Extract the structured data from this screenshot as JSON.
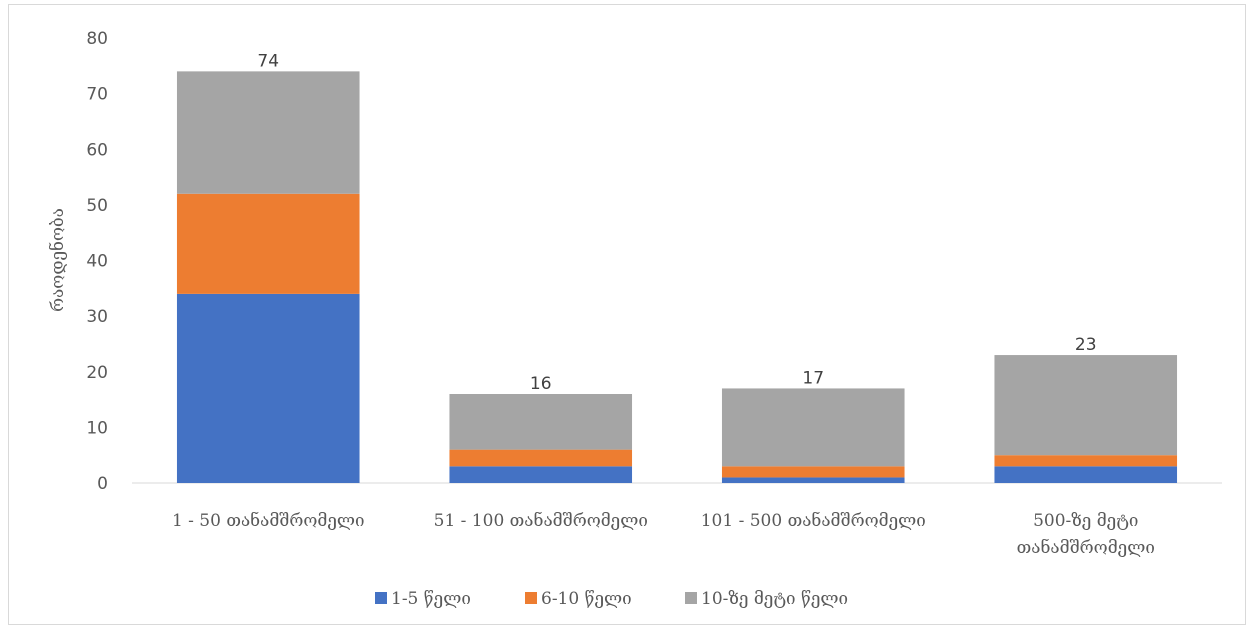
{
  "chart_data": {
    "type": "bar",
    "stacked": true,
    "categories": [
      "1 - 50 თანამშრომელი",
      "51 - 100 თანამშრომელი",
      "101 - 500 თანამშრომელი",
      "500-ზე მეტი თანამშრომელი"
    ],
    "category_lines": [
      [
        "1 - 50 თანამშრომელი"
      ],
      [
        "51 - 100 თანამშრომელი"
      ],
      [
        "101 - 500 თანამშრომელი"
      ],
      [
        "500-ზე მეტი",
        "თანამშრომელი"
      ]
    ],
    "series": [
      {
        "name": "1-5 წელი",
        "color": "#4472c4",
        "values": [
          34,
          3,
          1,
          3
        ]
      },
      {
        "name": "6-10 წელი",
        "color": "#ed7d31",
        "values": [
          18,
          3,
          2,
          2
        ]
      },
      {
        "name": "10-ზე მეტი წელი",
        "color": "#a5a5a5",
        "values": [
          22,
          10,
          14,
          18
        ]
      }
    ],
    "totals": [
      74,
      16,
      17,
      23
    ],
    "xlabel": "",
    "ylabel": "რაოდენობა",
    "ylim": [
      0,
      80
    ],
    "yticks": [
      0,
      10,
      20,
      30,
      40,
      50,
      60,
      70,
      80
    ],
    "grid": false,
    "legend_position": "bottom"
  }
}
